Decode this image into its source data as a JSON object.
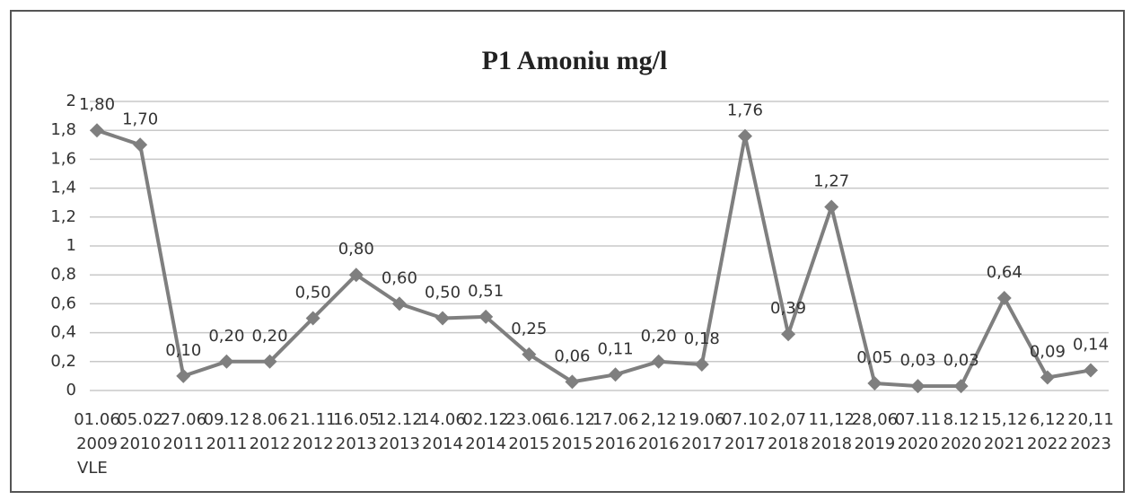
{
  "chart_data": {
    "type": "line",
    "title": "P1 Amoniu mg/l",
    "categories": [
      [
        "01.06",
        "2009",
        "VLE"
      ],
      [
        "05.02",
        "2010"
      ],
      [
        "27.06",
        "2011"
      ],
      [
        "09.12",
        "2011"
      ],
      [
        "8.06",
        "2012"
      ],
      [
        "21.11",
        "2012"
      ],
      [
        "16.05",
        "2013"
      ],
      [
        "12.12",
        "2013"
      ],
      [
        "14.06",
        "2014"
      ],
      [
        "02.12",
        "2014"
      ],
      [
        "23.06",
        "2015"
      ],
      [
        "16.12",
        "2015"
      ],
      [
        "17.06",
        "2016"
      ],
      [
        "2,12",
        "2016"
      ],
      [
        "19.06",
        "2017"
      ],
      [
        "07.10",
        "2017"
      ],
      [
        "2,07",
        "2018"
      ],
      [
        "11,12",
        "2018"
      ],
      [
        "28,06",
        "2019"
      ],
      [
        "07.11",
        "2020"
      ],
      [
        "8.12",
        "2020"
      ],
      [
        "15,12",
        "2021"
      ],
      [
        "6,12",
        "2022"
      ],
      [
        "20,11",
        "2023"
      ]
    ],
    "series": [
      {
        "name": "P1 Amoniu mg/l",
        "color": "#7f7f7f",
        "values": [
          1.8,
          1.7,
          0.1,
          0.2,
          0.2,
          0.5,
          0.8,
          0.6,
          0.5,
          0.51,
          0.25,
          0.06,
          0.11,
          0.2,
          0.18,
          1.76,
          0.39,
          1.27,
          0.05,
          0.03,
          0.03,
          0.64,
          0.09,
          0.14
        ],
        "value_labels": [
          "1,80",
          "1,70",
          "0,10",
          "0,20",
          "0,20",
          "0,50",
          "0,80",
          "0,60",
          "0,50",
          "0,51",
          "0,25",
          "0,06",
          "0,11",
          "0,20",
          "0,18",
          "1,76",
          "0,39",
          "1,27",
          "0,05",
          "0,03",
          "0,03",
          "0,64",
          "0,09",
          "0,14"
        ]
      }
    ],
    "ylim": [
      0,
      2
    ],
    "yticks": [
      0,
      {
        "value": 0.2,
        "label": "0,2"
      },
      {
        "value": 0.4,
        "label": "0,4"
      },
      {
        "value": 0.6,
        "label": "0,6"
      },
      {
        "value": 0.8,
        "label": "0,8"
      },
      1,
      {
        "value": 1.2,
        "label": "1,2"
      },
      {
        "value": 1.4,
        "label": "1,4"
      },
      {
        "value": 1.6,
        "label": "1,6"
      },
      {
        "value": 1.8,
        "label": "1,8"
      },
      2
    ],
    "grid": true
  }
}
